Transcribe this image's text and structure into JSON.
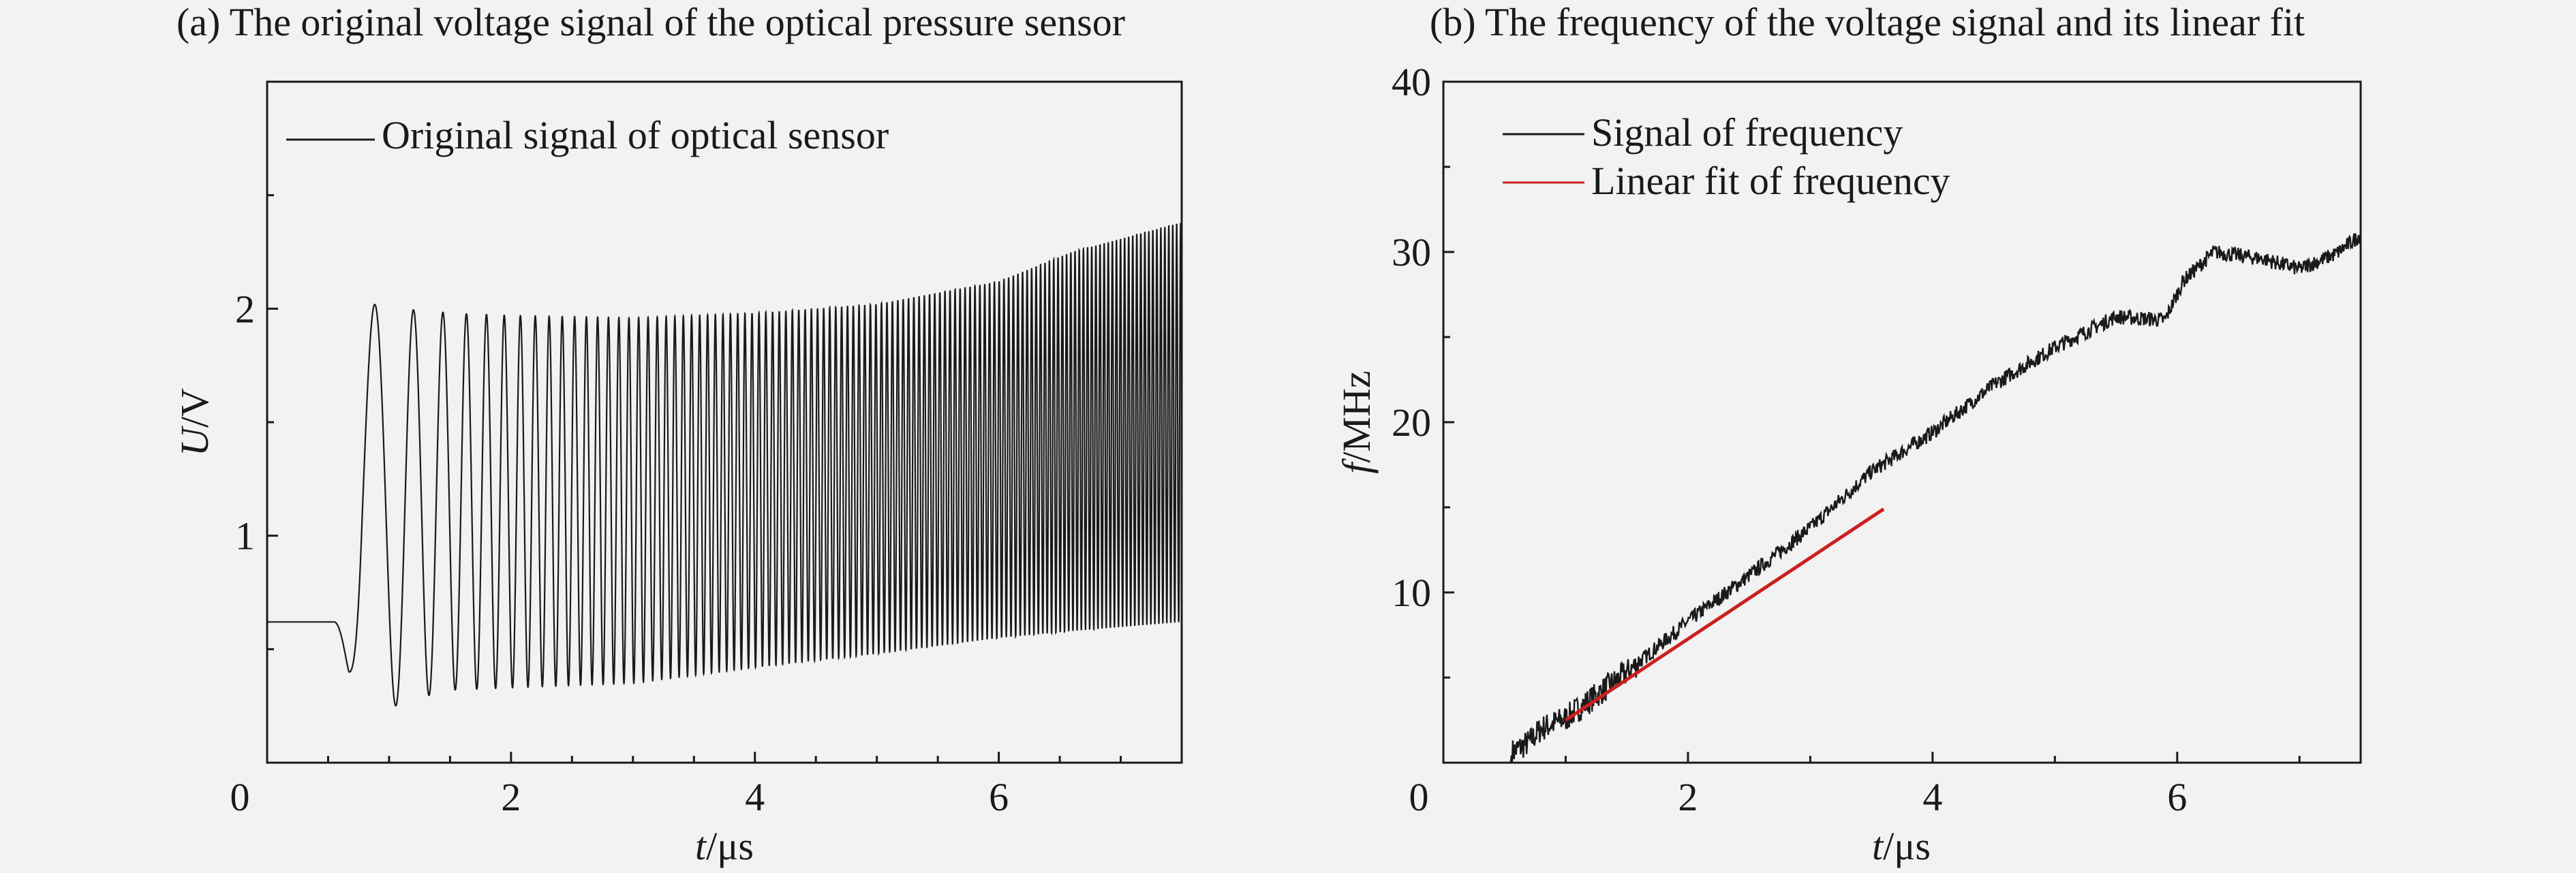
{
  "chart_data": [
    {
      "panel_title": "(a) The original voltage signal of the optical pressure sensor",
      "type": "line",
      "xlabel_var": "t",
      "xlabel_unit": "/μs",
      "ylabel_var": "U",
      "ylabel_unit": "/V",
      "xlim": [
        0,
        7.5
      ],
      "ylim": [
        0,
        3.0
      ],
      "xticks": [
        0,
        2,
        4,
        6
      ],
      "yticks": [
        1,
        2
      ],
      "grid": false,
      "legend_placement": "top-left",
      "series": [
        {
          "name": "Original signal of optical sensor",
          "color": "#1a1a1a",
          "description_points": {
            "t": [
              0,
              0.55,
              0.78,
              1.05,
              1.35,
              1.5,
              2.0,
              3.0,
              4.0,
              5.0,
              6.0,
              6.6,
              7.5
            ],
            "upper_envelope": [
              0.62,
              0.62,
              2.03,
              2.0,
              1.99,
              1.98,
              1.97,
              1.96,
              1.98,
              2.02,
              2.12,
              2.25,
              2.38
            ],
            "lower_envelope": [
              0.62,
              0.62,
              0.11,
              0.25,
              0.3,
              0.32,
              0.33,
              0.35,
              0.42,
              0.48,
              0.55,
              0.58,
              0.62
            ],
            "frequency_mhz": [
              0,
              0,
              2.2,
              3.2,
              4.2,
              5.0,
              7.5,
              12.5,
              17.5,
              22.0,
              25.5,
              29.0,
              31.0
            ]
          }
        }
      ]
    },
    {
      "panel_title": "(b) The frequency of the voltage signal and its linear fit",
      "type": "line",
      "xlabel_var": "t",
      "xlabel_unit": "/μs",
      "ylabel_var": "f",
      "ylabel_unit": "/MHz",
      "xlim": [
        0,
        7.5
      ],
      "ylim": [
        0,
        40
      ],
      "xticks": [
        0,
        2,
        4,
        6
      ],
      "yticks": [
        10,
        20,
        30,
        40
      ],
      "grid": false,
      "legend_placement": "top-left",
      "series": [
        {
          "name": "Signal of frequency",
          "color": "#1a1a1a",
          "x": [
            0,
            0.55,
            0.56,
            0.7,
            0.8,
            1.0,
            1.5,
            2.0,
            2.5,
            3.0,
            3.5,
            4.0,
            4.5,
            5.0,
            5.5,
            5.9,
            6.05,
            6.3,
            6.7,
            7.0,
            7.3,
            7.5
          ],
          "y": [
            0.0,
            0.0,
            0.6,
            1.2,
            2.0,
            2.6,
            5.3,
            8.3,
            11.0,
            13.8,
            17.1,
            19.4,
            22.2,
            24.4,
            26.2,
            26.0,
            28.3,
            30.0,
            29.6,
            29.0,
            29.9,
            31.0
          ]
        },
        {
          "name": "Linear fit of frequency",
          "color": "#cc1f1f",
          "x": [
            1.0,
            3.6
          ],
          "y": [
            2.5,
            14.9
          ]
        }
      ]
    }
  ]
}
